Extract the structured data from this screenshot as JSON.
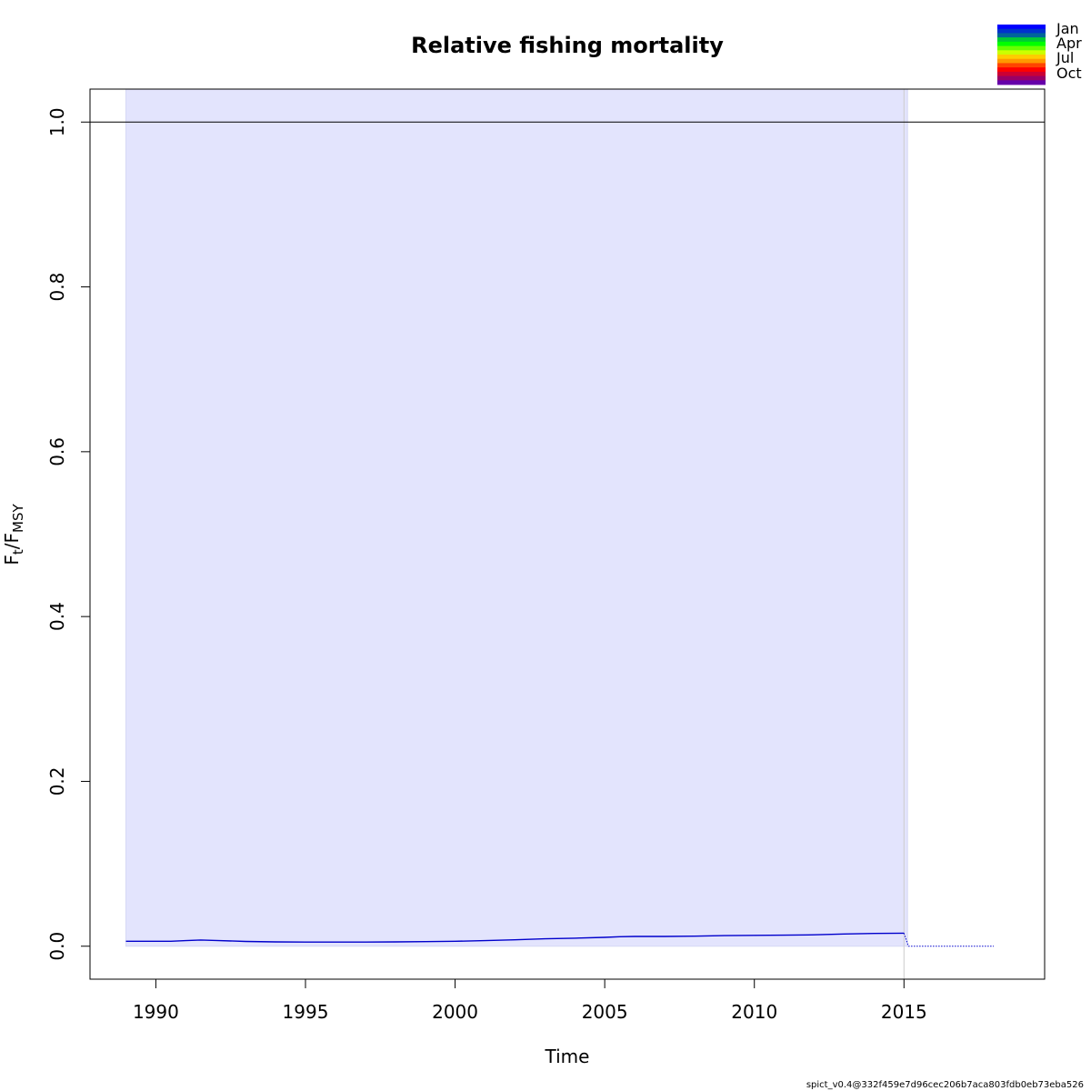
{
  "chart_data": {
    "type": "line",
    "title": "Relative fishing mortality",
    "xlabel": "Time",
    "ylabel": {
      "main": "F",
      "sub1": "t",
      "sep": "/F",
      "sub2": "MSY"
    },
    "xlim": [
      1987.8,
      2019.7
    ],
    "ylim": [
      -0.04,
      1.04
    ],
    "x_ticks": [
      1990,
      1995,
      2000,
      2005,
      2010,
      2015
    ],
    "x_tick_labels": [
      "1990",
      "1995",
      "2000",
      "2005",
      "2010",
      "2015"
    ],
    "y_ticks": [
      0.0,
      0.2,
      0.4,
      0.6,
      0.8,
      1.0
    ],
    "y_tick_labels": [
      "0.0",
      "0.2",
      "0.4",
      "0.6",
      "0.8",
      "1.0"
    ],
    "reference_line": {
      "y": 1.0,
      "color": "#000000"
    },
    "confidence_band": {
      "color": "#e3e4fd",
      "x": [
        1989.0,
        2015.0,
        2015.12
      ],
      "upper": [
        1.04,
        1.04,
        1.04
      ],
      "lower": [
        0.0,
        0.0,
        0.0
      ]
    },
    "vertical_marker": {
      "x": 2015.0,
      "color": "#cccccc"
    },
    "series": [
      {
        "style": "solid",
        "color": "#0000cc",
        "x": [
          1989.0,
          1990.0,
          1990.5,
          1991.0,
          1991.5,
          1992.0,
          1993.0,
          1994.0,
          1995.0,
          1996.0,
          1997.0,
          1998.0,
          1999.0,
          2000.0,
          2001.0,
          2002.0,
          2003.0,
          2004.0,
          2005.0,
          2005.5,
          2006.0,
          2007.0,
          2008.0,
          2009.0,
          2010.0,
          2011.0,
          2012.0,
          2013.0,
          2014.0,
          2015.0
        ],
        "y": [
          0.006,
          0.006,
          0.006,
          0.0068,
          0.0075,
          0.007,
          0.0058,
          0.0052,
          0.005,
          0.005,
          0.005,
          0.0052,
          0.0056,
          0.006,
          0.0068,
          0.0078,
          0.009,
          0.0098,
          0.0108,
          0.0115,
          0.0118,
          0.0118,
          0.0122,
          0.0128,
          0.0132,
          0.0134,
          0.0138,
          0.0148,
          0.0155,
          0.0158
        ]
      },
      {
        "style": "dotted",
        "color": "#0000cc",
        "x": [
          2015.0,
          2015.15,
          2016.0,
          2017.0,
          2018.0
        ],
        "y": [
          0.0158,
          0.0,
          0.0,
          0.0,
          0.0
        ]
      }
    ],
    "legend": {
      "placement": "top-right",
      "labels": [
        "Jan",
        "Apr",
        "Jul",
        "Oct"
      ],
      "colors": [
        "#0000ff",
        "#0033cc",
        "#006699",
        "#00cc33",
        "#00ff00",
        "#66ff00",
        "#ccff00",
        "#ffcc00",
        "#ff9900",
        "#ff4400",
        "#ff0000",
        "#cc0033",
        "#990066",
        "#6600aa"
      ]
    },
    "footer": "spict_v0.4@332f459e7d96cec206b7aca803fdb0eb73eba526"
  }
}
